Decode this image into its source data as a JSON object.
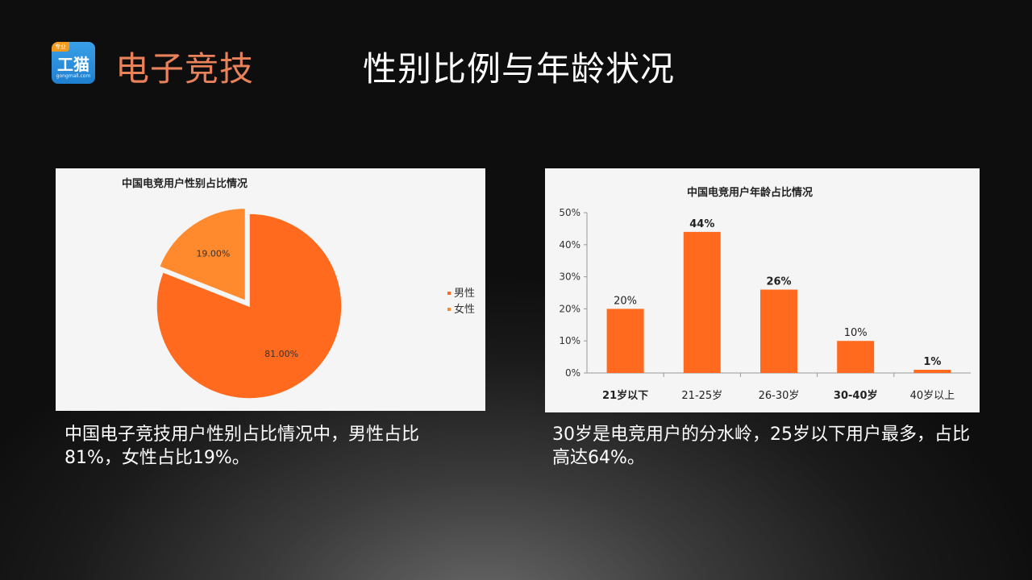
{
  "header": {
    "logo": {
      "tag": "专业",
      "name": "工猫",
      "sub": "gongmall.com"
    },
    "brand": "电子竞技",
    "title": "性别比例与年龄状况"
  },
  "captions": {
    "left": "中国电子竞技用户性别占比情况中，男性占比81%，女性占比19%。",
    "right": "30岁是电竞用户的分水岭，25岁以下用户最多，占比高达64%。"
  },
  "chart_data": [
    {
      "type": "pie",
      "title": "中国电竞用户性别占比情况",
      "labels": [
        "男性",
        "女性"
      ],
      "values": [
        81,
        19
      ],
      "value_labels": [
        "81.00%",
        "19.00%"
      ],
      "colors": [
        "#ff6a1f",
        "#ff8a2e"
      ],
      "legend": "right"
    },
    {
      "type": "bar",
      "title": "中国电竞用户年龄占比情况",
      "categories": [
        "21岁以下",
        "21-25岁",
        "26-30岁",
        "30-40岁",
        "40岁以上"
      ],
      "values": [
        20,
        44,
        26,
        10,
        1
      ],
      "value_labels": [
        "20%",
        "44%",
        "26%",
        "10%",
        "1%"
      ],
      "ylim": [
        0,
        50
      ],
      "yticks": [
        "0%",
        "10%",
        "20%",
        "30%",
        "40%",
        "50%"
      ],
      "color": "#ff6a1f"
    }
  ]
}
